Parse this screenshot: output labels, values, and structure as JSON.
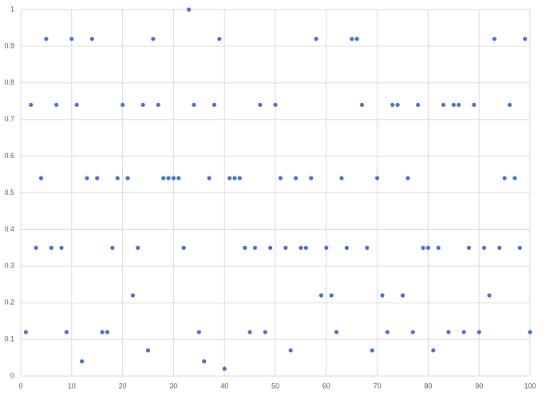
{
  "chart_data": {
    "type": "scatter",
    "x": [
      1,
      2,
      3,
      4,
      5,
      6,
      7,
      8,
      9,
      10,
      11,
      12,
      13,
      14,
      15,
      16,
      17,
      18,
      19,
      20,
      21,
      22,
      23,
      24,
      25,
      26,
      27,
      28,
      29,
      30,
      31,
      32,
      33,
      34,
      35,
      36,
      37,
      38,
      39,
      40,
      41,
      42,
      43,
      44,
      45,
      46,
      47,
      48,
      49,
      50,
      51,
      52,
      53,
      54,
      55,
      56,
      57,
      58,
      59,
      60,
      61,
      62,
      63,
      64,
      65,
      66,
      67,
      68,
      69,
      70,
      71,
      72,
      73,
      74,
      75,
      76,
      77,
      78,
      79,
      80,
      81,
      82,
      83,
      84,
      85,
      86,
      87,
      88,
      89,
      90,
      91,
      92,
      93,
      94,
      95,
      96,
      97,
      98,
      99,
      100
    ],
    "values": [
      0.12,
      0.74,
      0.35,
      0.54,
      0.92,
      0.35,
      0.74,
      0.35,
      0.12,
      0.92,
      0.74,
      0.04,
      0.54,
      0.92,
      0.54,
      0.12,
      0.12,
      0.35,
      0.54,
      0.74,
      0.54,
      0.22,
      0.35,
      0.74,
      0.07,
      0.92,
      0.74,
      0.54,
      0.54,
      0.54,
      0.54,
      0.35,
      1,
      0.74,
      0.12,
      0.04,
      0.54,
      0.74,
      0.92,
      0.02,
      0.54,
      0.54,
      0.54,
      0.35,
      0.12,
      0.35,
      0.74,
      0.12,
      0.35,
      0.74,
      0.54,
      0.35,
      0.07,
      0.54,
      0.35,
      0.35,
      0.54,
      0.92,
      0.22,
      0.35,
      0.22,
      0.12,
      0.54,
      0.35,
      0.92,
      0.92,
      0.74,
      0.35,
      0.07,
      0.54,
      0.22,
      0.12,
      0.74,
      0.74,
      0.22,
      0.54,
      0.12,
      0.74,
      0.35,
      0.35,
      0.07,
      0.35,
      0.74,
      0.12,
      0.74,
      0.74,
      0.12,
      0.35,
      0.74,
      0.12,
      0.35,
      0.22,
      0.92,
      0.35,
      0.54,
      0.74,
      0.54,
      0.35,
      0.92,
      0.12
    ],
    "color": "#4472c4",
    "xlim": [
      0,
      100
    ],
    "xticks": [
      0,
      10,
      20,
      30,
      40,
      50,
      60,
      70,
      80,
      90,
      100
    ],
    "ylim": [
      0,
      1
    ],
    "yticks": [
      0,
      0.1,
      0.2,
      0.3,
      0.4,
      0.5,
      0.6,
      0.7,
      0.8,
      0.9,
      1
    ],
    "grid": true
  }
}
